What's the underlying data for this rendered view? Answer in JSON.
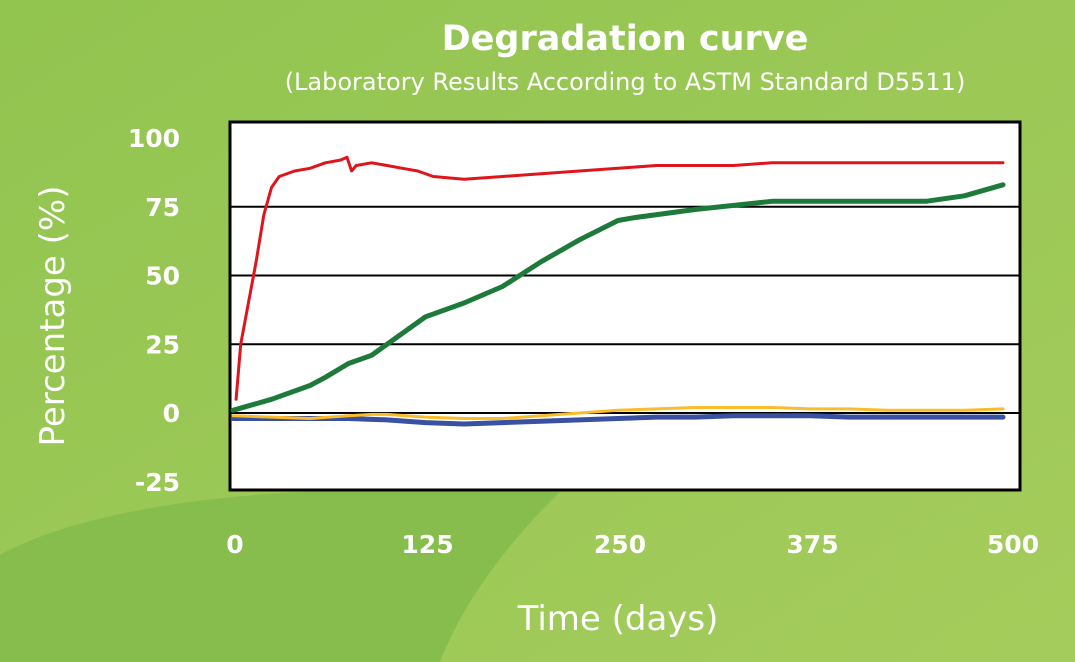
{
  "chart_data": {
    "type": "line",
    "title": "Degradation curve",
    "subtitle": "(Laboratory Results According to ASTM Standard D5511)",
    "xlabel": "Time (days)",
    "ylabel": "Percentage (%)",
    "xlim": [
      0,
      500
    ],
    "ylim": [
      -25,
      100
    ],
    "x_ticks": [
      0,
      125,
      250,
      375,
      500
    ],
    "y_ticks": [
      100,
      75,
      50,
      25,
      0,
      -25
    ],
    "grid": "horizontal",
    "legend": "none",
    "series": [
      {
        "color": "#e0141b",
        "x": [
          2,
          5,
          10,
          15,
          20,
          25,
          30,
          40,
          50,
          60,
          70,
          74,
          77,
          80,
          90,
          100,
          110,
          120,
          130,
          150,
          175,
          200,
          225,
          250,
          275,
          300,
          325,
          350,
          375,
          400,
          425,
          450,
          475,
          500
        ],
        "values": [
          5,
          25,
          40,
          55,
          72,
          82,
          86,
          88,
          89,
          91,
          92,
          93,
          88,
          90,
          91,
          90,
          89,
          88,
          86,
          85,
          86,
          87,
          88,
          89,
          90,
          90,
          90,
          91,
          91,
          91,
          91,
          91,
          91,
          91
        ]
      },
      {
        "color": "#1d7a3a",
        "x": [
          0,
          25,
          50,
          60,
          75,
          90,
          100,
          125,
          150,
          175,
          200,
          225,
          250,
          260,
          300,
          350,
          400,
          450,
          475,
          500
        ],
        "values": [
          1,
          5,
          10,
          13,
          18,
          21,
          25,
          35,
          40,
          46,
          55,
          63,
          70,
          71,
          74,
          77,
          77,
          77,
          79,
          83
        ]
      },
      {
        "color": "#fbbc2c",
        "x": [
          0,
          25,
          50,
          75,
          90,
          100,
          125,
          150,
          175,
          200,
          225,
          250,
          275,
          300,
          325,
          350,
          375,
          400,
          425,
          450,
          475,
          500
        ],
        "values": [
          -1,
          -1.5,
          -2,
          -1,
          -0.5,
          -0.5,
          -1.5,
          -2,
          -2,
          -1,
          0,
          1,
          1.5,
          2,
          2,
          2,
          1.5,
          1.5,
          1,
          1,
          1,
          1.5
        ]
      },
      {
        "color": "#3a50a0",
        "x": [
          0,
          25,
          50,
          75,
          100,
          125,
          150,
          175,
          200,
          225,
          250,
          275,
          300,
          325,
          350,
          375,
          400,
          425,
          450,
          475,
          500
        ],
        "values": [
          -2,
          -2,
          -2,
          -2,
          -2.5,
          -3.5,
          -4,
          -3.5,
          -3,
          -2.5,
          -2,
          -1.5,
          -1.5,
          -1,
          -1,
          -1,
          -1.5,
          -1.5,
          -1.5,
          -1.5,
          -1.5
        ]
      }
    ]
  }
}
